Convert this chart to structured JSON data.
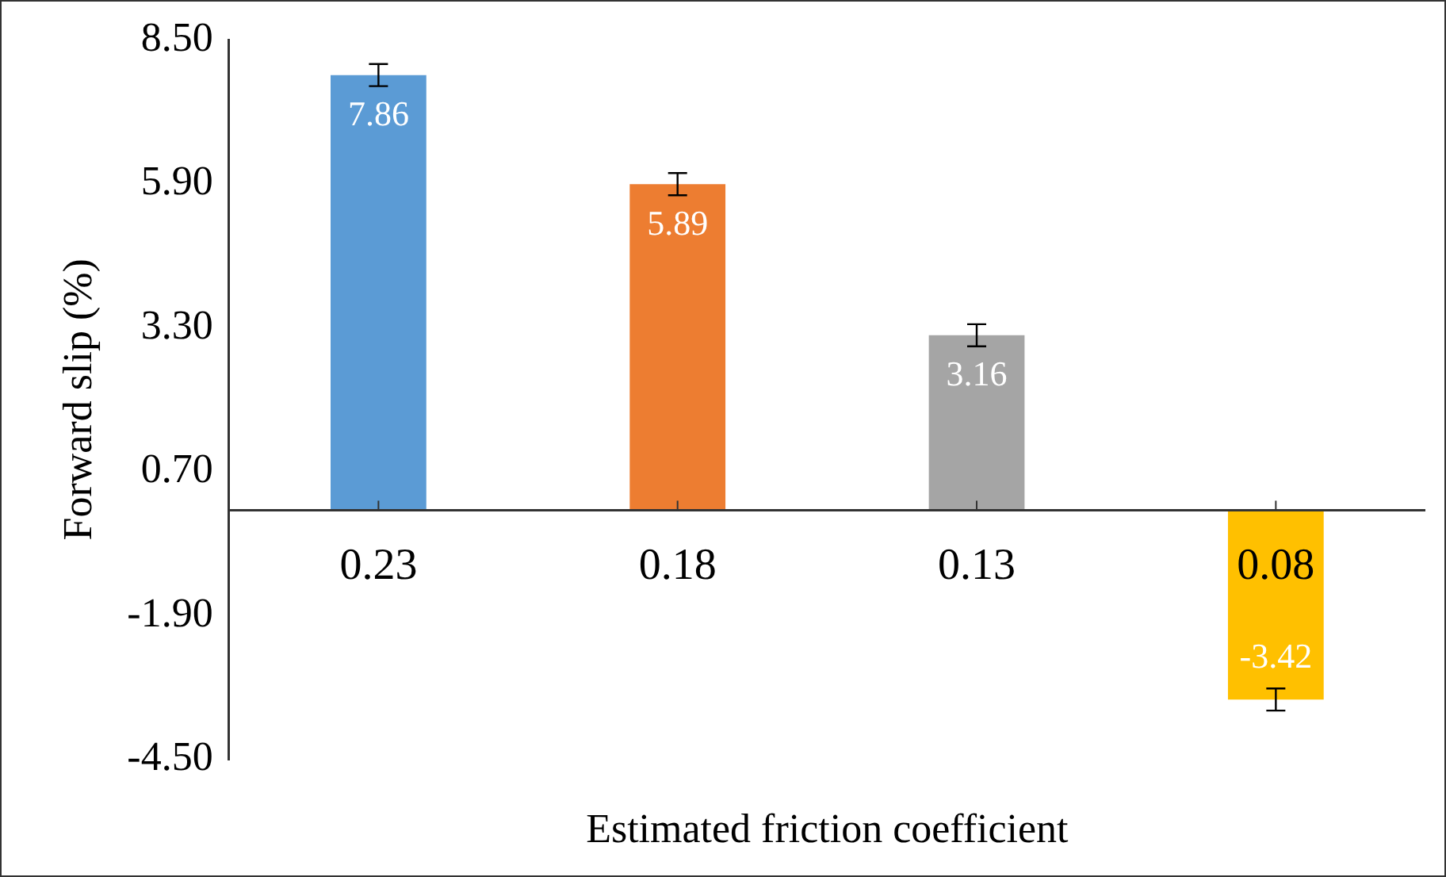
{
  "chart_data": {
    "type": "bar",
    "xlabel": "Estimated friction coefficient",
    "ylabel": "Forward slip (%)",
    "categories": [
      "0.23",
      "0.18",
      "0.13",
      "0.08"
    ],
    "values": [
      7.86,
      5.89,
      3.16,
      -3.42
    ],
    "colors": [
      "#5b9bd5",
      "#ed7d31",
      "#a5a5a5",
      "#ffc000"
    ],
    "errors": [
      0.2,
      0.2,
      0.2,
      0.2
    ],
    "data_labels": true,
    "ylim": [
      -4.5,
      8.5
    ],
    "yticks": [
      {
        "value": -4.5,
        "label": "-4.50"
      },
      {
        "value": -1.9,
        "label": "-1.90"
      },
      {
        "value": 0.7,
        "label": "0.70"
      },
      {
        "value": 3.3,
        "label": "3.30"
      },
      {
        "value": 5.9,
        "label": "5.90"
      },
      {
        "value": 8.5,
        "label": "8.50"
      }
    ],
    "grid": false,
    "legend": false
  }
}
